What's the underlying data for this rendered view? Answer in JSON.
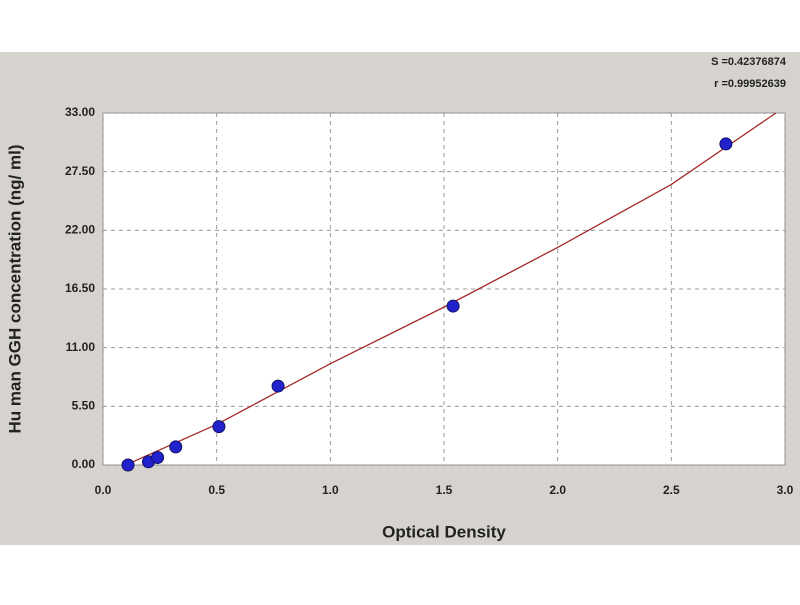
{
  "chart_data": {
    "type": "scatter",
    "x_label": "Optical Density",
    "y_label": "Hu man GGH concentration (ng/ ml)",
    "annotations": [
      "S =0.42376874",
      "r =0.99952639"
    ],
    "x": [
      0.11,
      0.2,
      0.24,
      0.32,
      0.51,
      0.77,
      1.54,
      2.74
    ],
    "values": [
      0,
      0.3,
      0.7,
      1.7,
      3.6,
      7.4,
      14.9,
      30.1
    ],
    "color": "#2222cc",
    "fit": {
      "x": [
        0.1,
        0.5,
        1.0,
        1.5,
        2.0,
        2.5,
        2.96
      ],
      "values": [
        0,
        3.8,
        9.5,
        14.8,
        20.4,
        26.3,
        33
      ],
      "color": "#a52a2a"
    },
    "xlim": [
      0,
      3
    ],
    "ylim": [
      0,
      33
    ],
    "xticks": [
      {
        "value": 0,
        "label": "0.0"
      },
      0.5,
      {
        "value": 1,
        "label": "1.0"
      },
      1.5,
      {
        "value": 2,
        "label": "2.0"
      },
      2.5,
      {
        "value": 3,
        "label": "3.0"
      }
    ],
    "yticks": [
      {
        "value": 0,
        "label": "0.00"
      },
      {
        "value": 5.5,
        "label": "5.50"
      },
      {
        "value": 11,
        "label": "11.00"
      },
      {
        "value": 16.5,
        "label": "16.50"
      },
      {
        "value": 22,
        "label": "22.00"
      },
      {
        "value": 27.5,
        "label": "27.50"
      },
      {
        "value": 33,
        "label": "33.00"
      }
    ],
    "grid": true
  }
}
